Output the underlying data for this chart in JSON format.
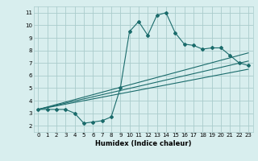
{
  "xlabel": "Humidex (Indice chaleur)",
  "ylabel": "",
  "bg_color": "#d8eeee",
  "grid_color": "#aacccc",
  "line_color": "#1a6b6b",
  "xlim": [
    -0.5,
    23.5
  ],
  "ylim": [
    1.5,
    11.5
  ],
  "xticks": [
    0,
    1,
    2,
    3,
    4,
    5,
    6,
    7,
    8,
    9,
    10,
    11,
    12,
    13,
    14,
    15,
    16,
    17,
    18,
    19,
    20,
    21,
    22,
    23
  ],
  "yticks": [
    2,
    3,
    4,
    5,
    6,
    7,
    8,
    9,
    10,
    11
  ],
  "main_x": [
    0,
    1,
    2,
    3,
    4,
    5,
    6,
    7,
    8,
    9,
    10,
    11,
    12,
    13,
    14,
    15,
    16,
    17,
    18,
    19,
    20,
    21,
    22,
    23
  ],
  "main_y": [
    3.3,
    3.3,
    3.3,
    3.3,
    3.0,
    2.2,
    2.3,
    2.4,
    2.7,
    5.0,
    9.5,
    10.3,
    9.2,
    10.8,
    11.0,
    9.4,
    8.5,
    8.4,
    8.1,
    8.2,
    8.2,
    7.6,
    7.0,
    6.8
  ],
  "line1_x": [
    0,
    23
  ],
  "line1_y": [
    3.3,
    7.8
  ],
  "line2_x": [
    0,
    23
  ],
  "line2_y": [
    3.3,
    6.5
  ],
  "line3_x": [
    0,
    23
  ],
  "line3_y": [
    3.3,
    7.15
  ]
}
